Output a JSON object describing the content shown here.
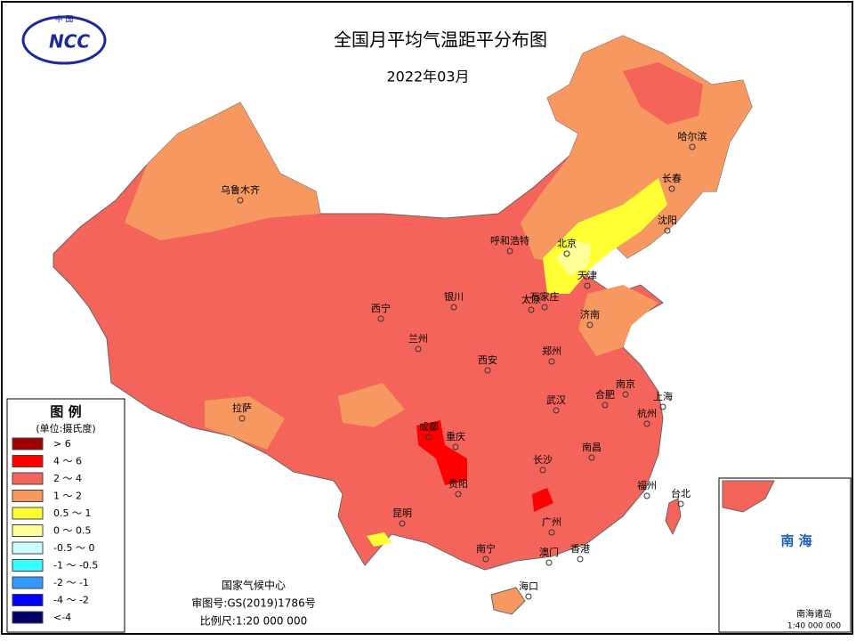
{
  "header": {
    "title": "全国月平均气温距平分布图",
    "subtitle": "2022年03月"
  },
  "logo": {
    "text": "NCC",
    "country": "中 国"
  },
  "legend": {
    "title": "图 例",
    "unit": "(单位:摄氏度)",
    "items": [
      {
        "label": "> 6",
        "color": "#a00000"
      },
      {
        "label": "4 ～ 6",
        "color": "#ff0000"
      },
      {
        "label": "2 ～ 4",
        "color": "#f4645a"
      },
      {
        "label": "1 ～ 2",
        "color": "#f79860"
      },
      {
        "label": "0.5 ～ 1",
        "color": "#ffff33"
      },
      {
        "label": "0 ～ 0.5",
        "color": "#ffff99"
      },
      {
        "label": "-0.5 ～ 0",
        "color": "#ccffff"
      },
      {
        "label": "-1 ～ -0.5",
        "color": "#33ffff"
      },
      {
        "label": "-2 ～ -1",
        "color": "#3399ff"
      },
      {
        "label": "-4 ～ -2",
        "color": "#0000ff"
      },
      {
        "label": "<-4",
        "color": "#000066"
      }
    ]
  },
  "cities": [
    "乌鲁木齐",
    "哈尔滨",
    "长春",
    "沈阳",
    "呼和浩特",
    "北京",
    "天津",
    "石家庄",
    "太原",
    "银川",
    "西宁",
    "兰州",
    "济南",
    "郑州",
    "西安",
    "南京",
    "合肥",
    "上海",
    "武汉",
    "杭州",
    "拉萨",
    "成都",
    "重庆",
    "南昌",
    "长沙",
    "贵阳",
    "福州",
    "台北",
    "昆明",
    "广州",
    "香港",
    "澳门",
    "南宁",
    "海口"
  ],
  "footer": [
    "国家气候中心",
    "审图号:GS(2019)1786号",
    "比例尺:1:20 000 000"
  ],
  "inset": {
    "title": "南 海",
    "caption": "南海诸岛",
    "scale": "1:40 000 000"
  }
}
